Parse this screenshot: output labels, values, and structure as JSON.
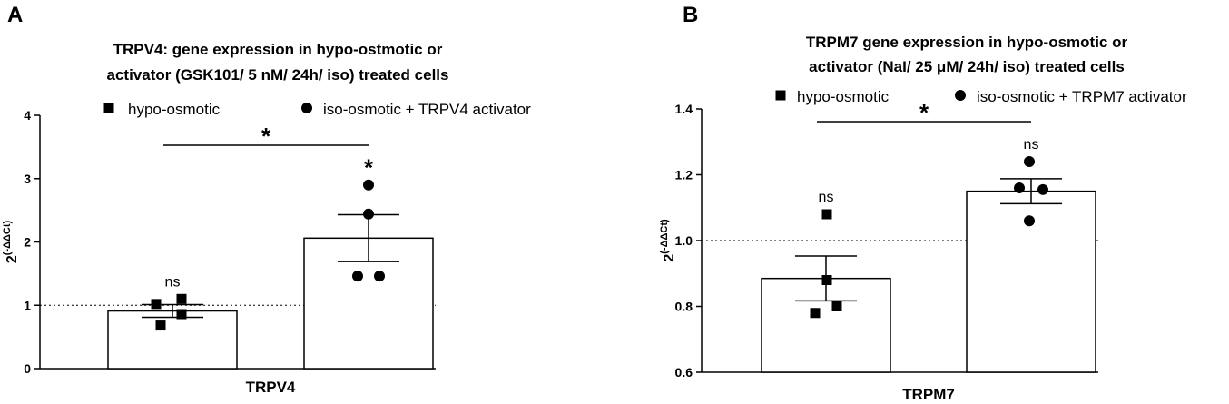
{
  "chart_data": [
    {
      "type": "bar",
      "panel_label": "A",
      "title": [
        "TRPV4:  gene expression in hypo-ostmotic or",
        "activator (GSK101/ 5 nM/ 24h/ iso) treated cells"
      ],
      "ylabel": "2(-ΔΔCt)",
      "xlabel": "TRPV4",
      "ylim": [
        0,
        4
      ],
      "yticks": [
        "0",
        "1",
        "2",
        "3",
        "4"
      ],
      "reference_line": 1,
      "legend": [
        {
          "marker": "square",
          "label": "hypo-osmotic"
        },
        {
          "marker": "circle",
          "label": "iso-osmotic + TRPV4 activator"
        }
      ],
      "series": [
        {
          "label": "hypo-osmotic",
          "marker": "square",
          "mean": 0.91,
          "sem": 0.1,
          "points": [
            0.68,
            1.02,
            1.1,
            0.86
          ],
          "annotation": "ns"
        },
        {
          "label": "iso-osmotic + TRPV4 activator",
          "marker": "circle",
          "mean": 2.06,
          "sem": 0.37,
          "points": [
            2.9,
            2.44,
            1.46,
            1.46
          ],
          "annotation": "*"
        }
      ],
      "comparison": {
        "label": "*"
      }
    },
    {
      "type": "bar",
      "panel_label": "B",
      "title": [
        "TRPM7 gene expression in hypo-osmotic or",
        "activator (NaI/ 25 μM/ 24h/ iso) treated cells"
      ],
      "ylabel": "2(-ΔΔCt)",
      "xlabel": "TRPM7",
      "ylim": [
        0.6,
        1.4
      ],
      "yticks": [
        "0.6",
        "0.8",
        "1.0",
        "1.2",
        "1.4"
      ],
      "reference_line": 1.0,
      "legend": [
        {
          "marker": "square",
          "label": "hypo-osmotic"
        },
        {
          "marker": "circle",
          "label": "iso-osmotic + TRPM7 activator"
        }
      ],
      "series": [
        {
          "label": "hypo-osmotic",
          "marker": "square",
          "mean": 0.885,
          "sem": 0.068,
          "points": [
            1.08,
            0.88,
            0.8,
            0.78
          ],
          "annotation": "ns"
        },
        {
          "label": "iso-osmotic + TRPM7 activator",
          "marker": "circle",
          "mean": 1.15,
          "sem": 0.038,
          "points": [
            1.24,
            1.16,
            1.155,
            1.06
          ],
          "annotation": "ns"
        }
      ],
      "comparison": {
        "label": "*"
      }
    }
  ]
}
